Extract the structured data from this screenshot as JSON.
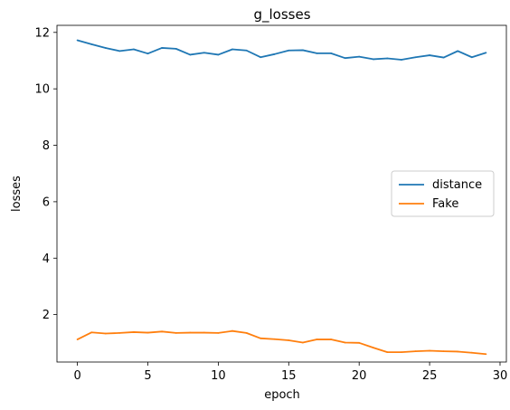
{
  "chart_data": {
    "type": "line",
    "title": "g_losses",
    "xlabel": "epoch",
    "ylabel": "losses",
    "xlim": [
      -1.45,
      30.45
    ],
    "ylim": [
      0.32,
      12.25
    ],
    "xticks": [
      0,
      5,
      10,
      15,
      20,
      25,
      30
    ],
    "yticks": [
      2,
      4,
      6,
      8,
      10,
      12
    ],
    "grid": false,
    "legend_position": "center-right",
    "x": [
      0,
      1,
      2,
      3,
      4,
      5,
      6,
      7,
      8,
      9,
      10,
      11,
      12,
      13,
      14,
      15,
      16,
      17,
      18,
      19,
      20,
      21,
      22,
      23,
      24,
      25,
      26,
      27,
      28,
      29
    ],
    "series": [
      {
        "name": "distance",
        "color": "#1f77b4",
        "values": [
          11.72,
          11.58,
          11.45,
          11.34,
          11.4,
          11.25,
          11.45,
          11.42,
          11.21,
          11.28,
          11.21,
          11.4,
          11.36,
          11.12,
          11.23,
          11.36,
          11.37,
          11.26,
          11.26,
          11.09,
          11.14,
          11.05,
          11.08,
          11.03,
          11.12,
          11.19,
          11.11,
          11.34,
          11.12,
          11.28
        ]
      },
      {
        "name": "Fake",
        "color": "#ff7f0e",
        "values": [
          1.12,
          1.37,
          1.33,
          1.35,
          1.38,
          1.36,
          1.4,
          1.35,
          1.36,
          1.36,
          1.35,
          1.42,
          1.35,
          1.16,
          1.13,
          1.09,
          1.01,
          1.12,
          1.12,
          1.01,
          1.0,
          0.83,
          0.67,
          0.67,
          0.7,
          0.72,
          0.7,
          0.69,
          0.65,
          0.6
        ]
      }
    ]
  }
}
